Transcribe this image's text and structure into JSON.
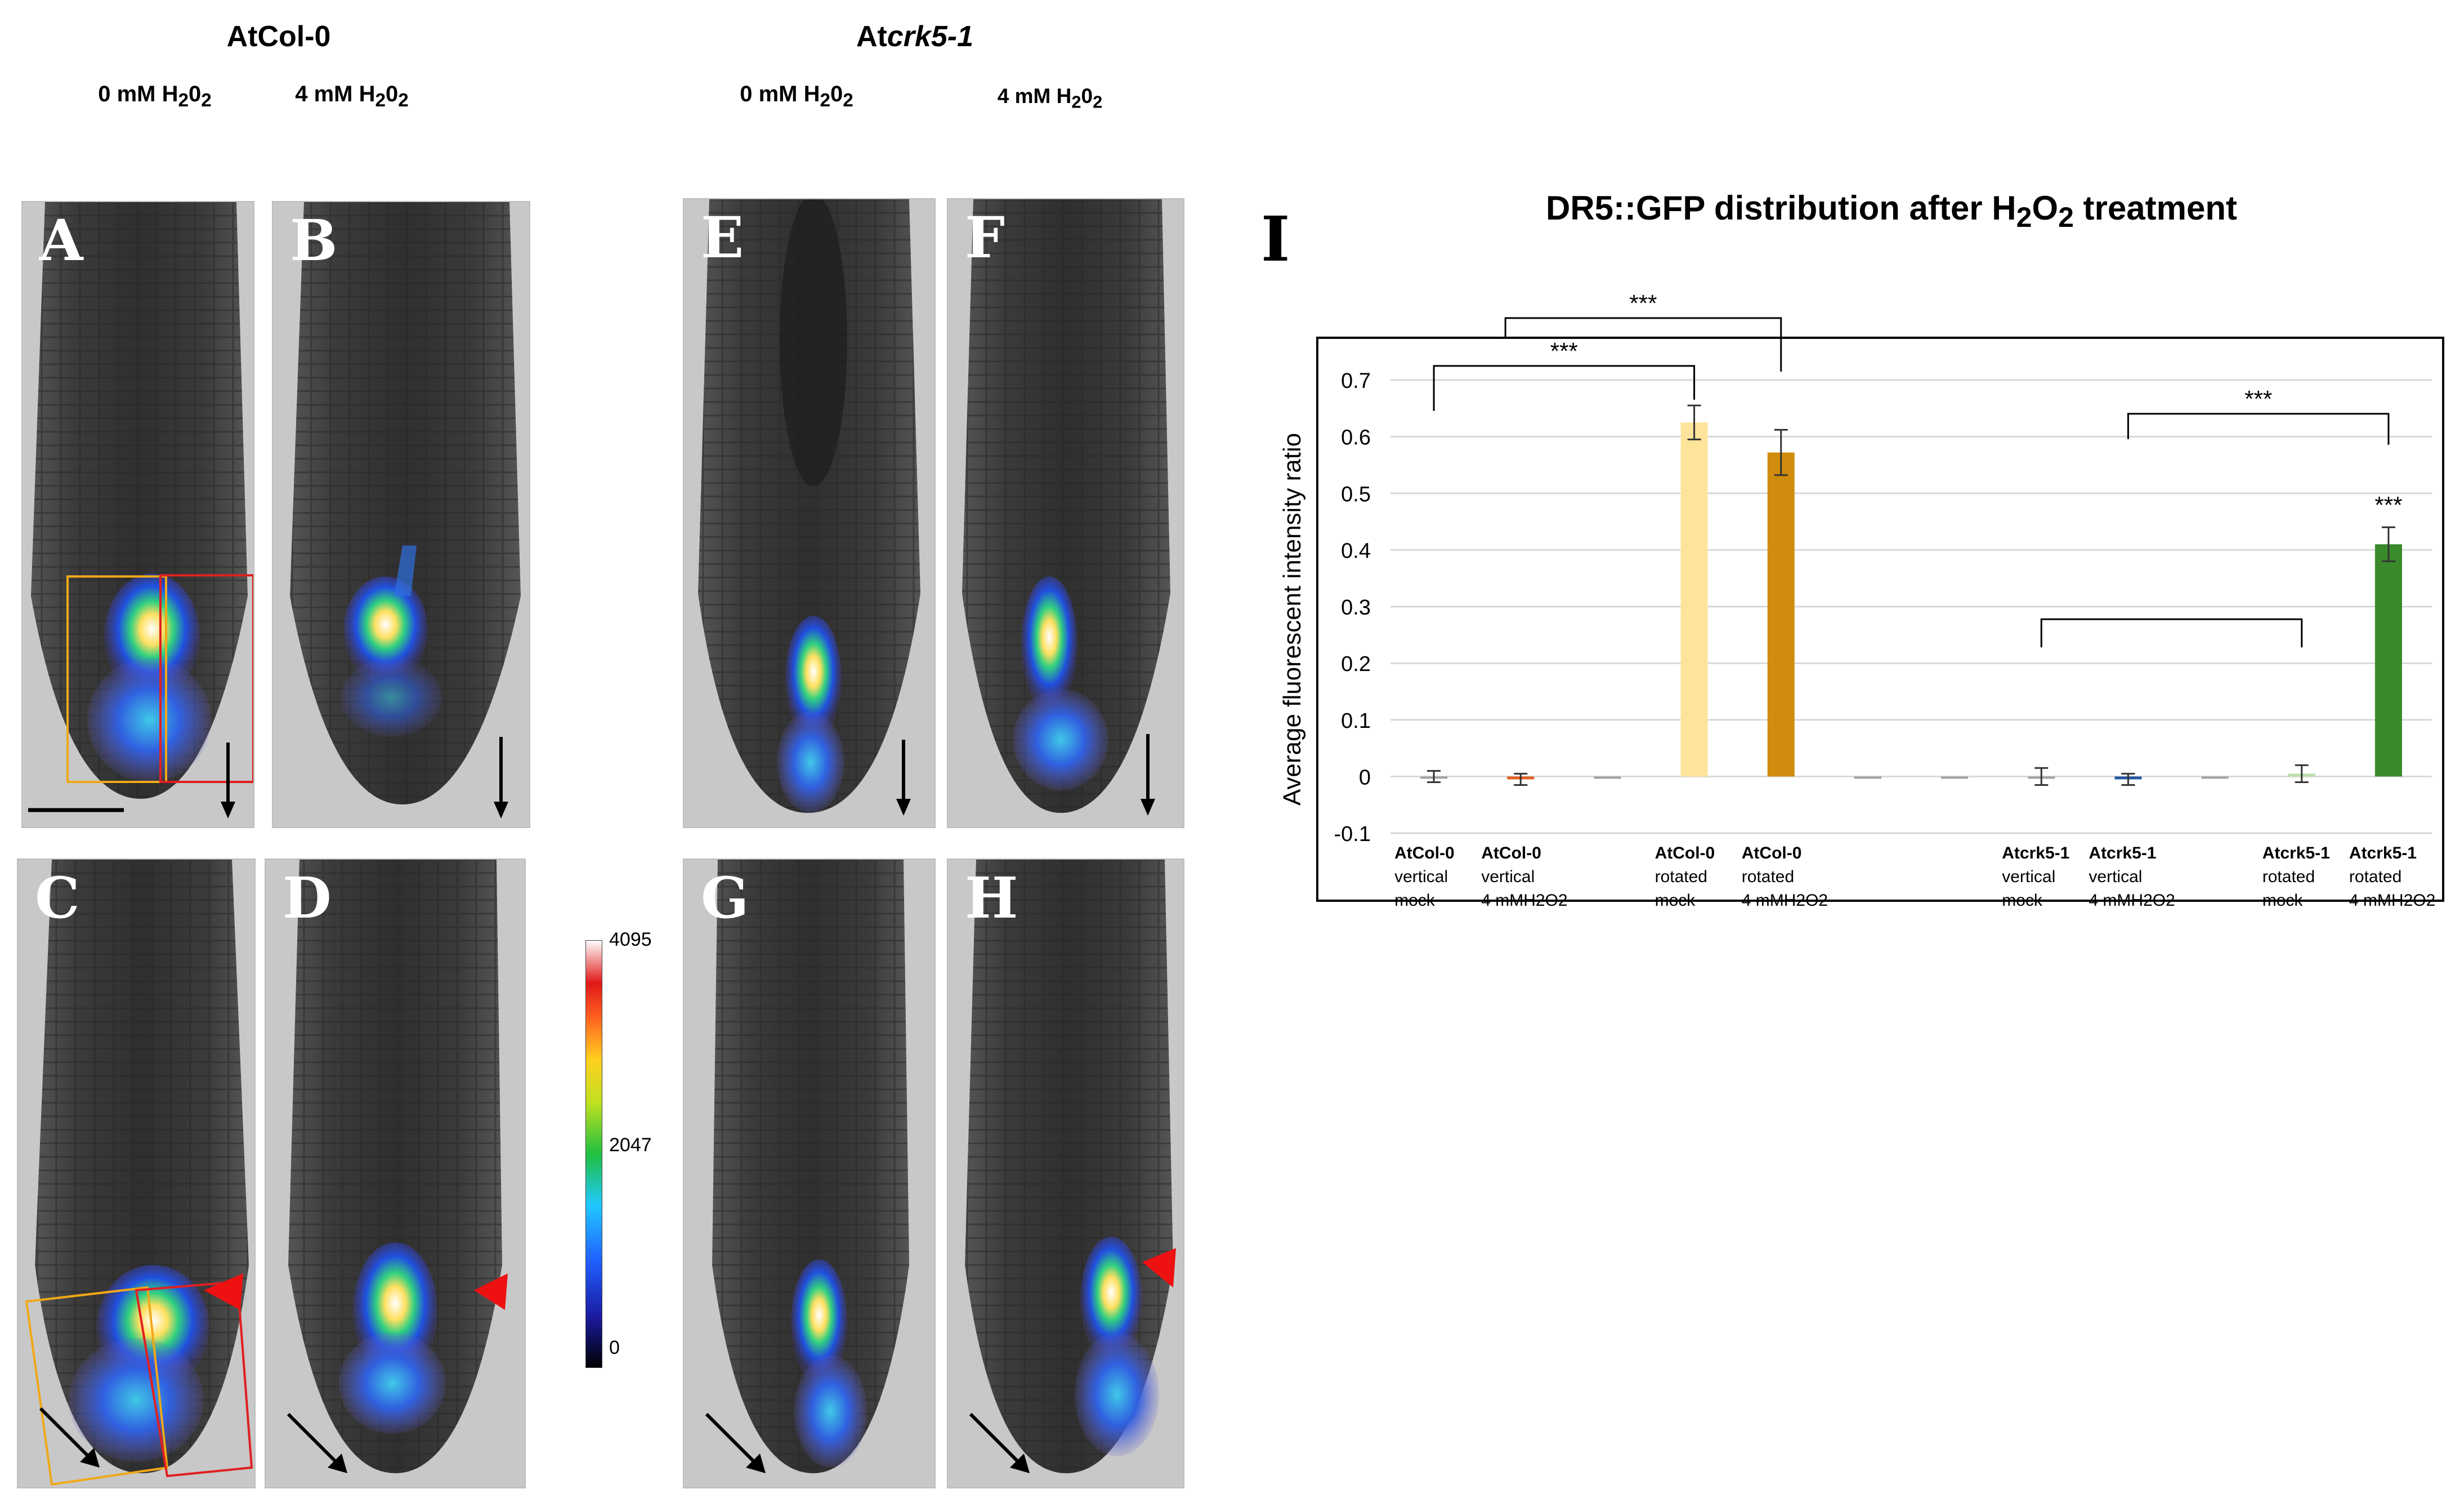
{
  "figure": {
    "genotype_left": "AtCol-0",
    "genotype_right_prefix": "At",
    "genotype_right_italic": "crk5-1",
    "treat_left_0": "0 mM H",
    "treat_left_0_sub1": "2",
    "treat_left_0_mid": "0",
    "treat_left_0_sub2": "2",
    "treat_left_4": "4 mM H",
    "treat_left_4_sub1": "2",
    "treat_left_4_mid": "0",
    "treat_left_4_sub2": "2",
    "treat_right_0": "0 mM H",
    "treat_right_0_sub1": "2",
    "treat_right_0_mid": "0",
    "treat_right_0_sub2": "2",
    "treat_right_4": "4 mM H",
    "treat_right_4_sub1": "2",
    "treat_right_4_mid": "0",
    "treat_right_4_sub2": "2",
    "panels": [
      "A",
      "B",
      "C",
      "D",
      "E",
      "F",
      "G",
      "H"
    ],
    "colorbar": {
      "max": "4095",
      "mid": "2047",
      "min": "0"
    },
    "colors": {
      "arrow": "#000000",
      "arrowhead": "#ee1111",
      "box_left": "#f0a818",
      "box_right": "#e02020"
    }
  },
  "chart_data": {
    "type": "bar",
    "panel_label": "I",
    "title": "DR5::GFP distribution after H",
    "title_sub": "2",
    "title_mid": "O",
    "title_sub2": "2",
    "title_end": " treatment",
    "ylabel": "Average fluorescent intensity ratio",
    "ylim": [
      -0.1,
      0.7
    ],
    "yticks": [
      "-0.1",
      "0",
      "0.1",
      "0.2",
      "0.3",
      "0.4",
      "0.5",
      "0.6",
      "0.7"
    ],
    "significance": "***",
    "categories": [
      {
        "l1": "AtCol-0",
        "l2": "vertical",
        "l3": "mock",
        "value": 0.0,
        "err": 0.01,
        "color": "#a0a0a0"
      },
      {
        "l1": "AtCol-0",
        "l2": "vertical",
        "l3": "4 mMH2O2",
        "value": -0.005,
        "err": 0.01,
        "color": "#e06020"
      },
      {
        "l1": "",
        "l2": "",
        "l3": "",
        "value": 0.0,
        "err": 0.0,
        "color": "#a0a0a0"
      },
      {
        "l1": "AtCol-0",
        "l2": "rotated",
        "l3": "mock",
        "value": 0.625,
        "err": 0.03,
        "color": "#fde49a"
      },
      {
        "l1": "AtCol-0",
        "l2": "rotated",
        "l3": "4 mMH2O2",
        "value": 0.572,
        "err": 0.04,
        "color": "#d08c0c"
      },
      {
        "l1": "",
        "l2": "",
        "l3": "",
        "value": 0.0,
        "err": 0.0,
        "color": "#a0a0a0"
      },
      {
        "l1": "",
        "l2": "",
        "l3": "",
        "value": 0.0,
        "err": 0.0,
        "color": "#a0a0a0"
      },
      {
        "l1": "Atcrk5-1",
        "l2": "vertical",
        "l3": "mock",
        "value": 0.0,
        "err": 0.015,
        "color": "#a0a0a0"
      },
      {
        "l1": "Atcrk5-1",
        "l2": "vertical",
        "l3": "4 mMH2O2",
        "value": -0.005,
        "err": 0.01,
        "color": "#2455a4"
      },
      {
        "l1": "",
        "l2": "",
        "l3": "",
        "value": 0.0,
        "err": 0.0,
        "color": "#a0a0a0"
      },
      {
        "l1": "Atcrk5-1",
        "l2": "rotated",
        "l3": "mock",
        "value": 0.005,
        "err": 0.015,
        "color": "#b8e0a8"
      },
      {
        "l1": "Atcrk5-1",
        "l2": "rotated",
        "l3": "4 mMH2O2",
        "value": 0.41,
        "err": 0.03,
        "color": "#3a8a2c"
      }
    ]
  }
}
